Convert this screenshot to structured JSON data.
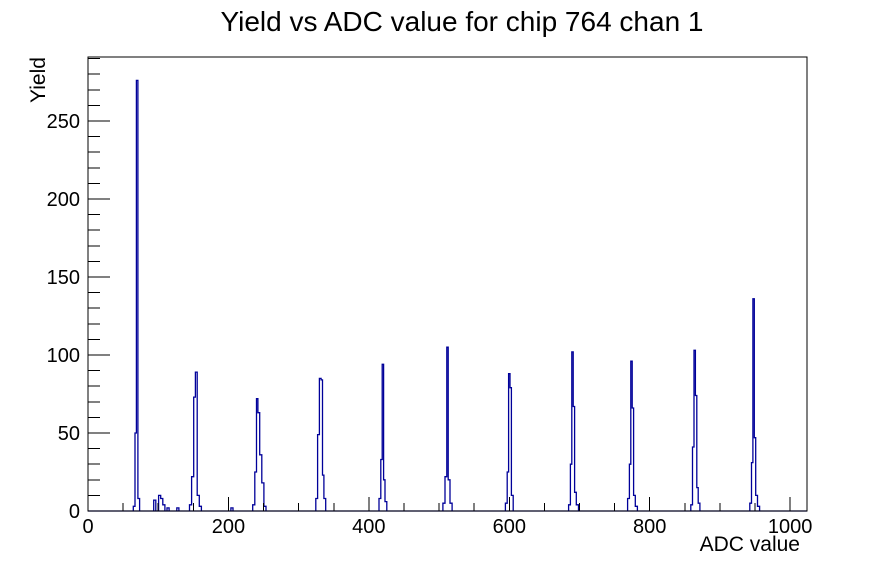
{
  "title": "Yield vs ADC value for chip 764 chan 1",
  "colors": {
    "histogram_line": "#000099",
    "axis": "#000000",
    "background": "#ffffff",
    "text": "#000000"
  },
  "chart_data": {
    "type": "bar",
    "title": "Yield vs ADC value for chip 764 chan 1",
    "xlabel": "ADC value",
    "ylabel": "Yield",
    "xlim": [
      0,
      1024
    ],
    "ylim": [
      0,
      291
    ],
    "x_major_ticks": [
      0,
      200,
      400,
      600,
      800,
      1000
    ],
    "x_minor_step": 50,
    "y_major_ticks": [
      0,
      50,
      100,
      150,
      200,
      250
    ],
    "y_minor_step": 10,
    "grid": false,
    "legend": false,
    "bin_width_adc": 3,
    "bins": [
      [
        66,
        3
      ],
      [
        68,
        50
      ],
      [
        70,
        276
      ],
      [
        72,
        8
      ],
      [
        95,
        7
      ],
      [
        102,
        10
      ],
      [
        105,
        8
      ],
      [
        108,
        4
      ],
      [
        114,
        2
      ],
      [
        128,
        2
      ],
      [
        146,
        4
      ],
      [
        149,
        22
      ],
      [
        152,
        73
      ],
      [
        154,
        89
      ],
      [
        157,
        10
      ],
      [
        160,
        3
      ],
      [
        205,
        2
      ],
      [
        236,
        4
      ],
      [
        239,
        25
      ],
      [
        241,
        72
      ],
      [
        243,
        63
      ],
      [
        246,
        36
      ],
      [
        249,
        18
      ],
      [
        252,
        3
      ],
      [
        326,
        8
      ],
      [
        328,
        49
      ],
      [
        331,
        85
      ],
      [
        333,
        84
      ],
      [
        335,
        23
      ],
      [
        337,
        8
      ],
      [
        416,
        8
      ],
      [
        418,
        33
      ],
      [
        420,
        94
      ],
      [
        422,
        20
      ],
      [
        424,
        6
      ],
      [
        507,
        5
      ],
      [
        510,
        22
      ],
      [
        512,
        105
      ],
      [
        514,
        20
      ],
      [
        517,
        5
      ],
      [
        596,
        5
      ],
      [
        598,
        25
      ],
      [
        600,
        88
      ],
      [
        602,
        79
      ],
      [
        604,
        10
      ],
      [
        686,
        4
      ],
      [
        688,
        30
      ],
      [
        690,
        102
      ],
      [
        692,
        67
      ],
      [
        694,
        12
      ],
      [
        697,
        4
      ],
      [
        770,
        8
      ],
      [
        772,
        30
      ],
      [
        774,
        96
      ],
      [
        776,
        66
      ],
      [
        778,
        10
      ],
      [
        781,
        3
      ],
      [
        860,
        4
      ],
      [
        862,
        41
      ],
      [
        864,
        103
      ],
      [
        866,
        74
      ],
      [
        868,
        15
      ],
      [
        870,
        5
      ],
      [
        944,
        5
      ],
      [
        946,
        31
      ],
      [
        948,
        136
      ],
      [
        950,
        47
      ],
      [
        952,
        10
      ],
      [
        955,
        3
      ]
    ],
    "peaks": [
      {
        "adc": 70,
        "yield": 276
      },
      {
        "adc": 154,
        "yield": 89
      },
      {
        "adc": 241,
        "yield": 72
      },
      {
        "adc": 331,
        "yield": 85
      },
      {
        "adc": 420,
        "yield": 94
      },
      {
        "adc": 512,
        "yield": 105
      },
      {
        "adc": 600,
        "yield": 88
      },
      {
        "adc": 690,
        "yield": 102
      },
      {
        "adc": 774,
        "yield": 96
      },
      {
        "adc": 864,
        "yield": 103
      },
      {
        "adc": 948,
        "yield": 136
      }
    ]
  }
}
